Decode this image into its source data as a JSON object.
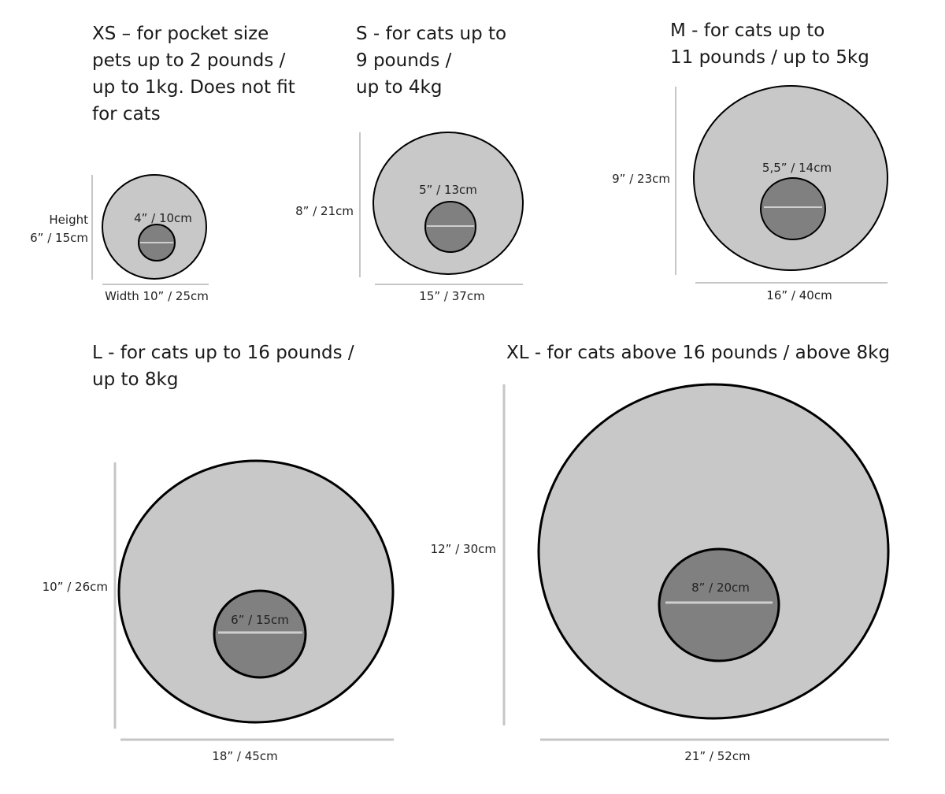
{
  "colors": {
    "outer_fill": "#c8c8c8",
    "inner_fill": "#808080",
    "outline": "#000000",
    "dimension_line": "#c6c6c6",
    "inner_line": "#cfcfcf"
  },
  "sizes": [
    {
      "title": "XS – for pocket size\npets up to 2 pounds /\nup to 1kg. Does not fit\nfor cats",
      "height_label_word": "Height",
      "height": "6” / 15cm",
      "width": "Width 10” / 25cm",
      "opening": "4” / 10cm"
    },
    {
      "title": "S - for cats up to\n9 pounds /\nup to 4kg",
      "height": "8” / 21cm",
      "width": "15” / 37cm",
      "opening": "5” / 13cm"
    },
    {
      "title": "M - for cats up to\n11 pounds / up to 5kg",
      "height": "9” / 23cm",
      "width": "16” / 40cm",
      "opening": "5,5” / 14cm"
    },
    {
      "title": "L - for cats up to 16 pounds /\nup to 8kg",
      "height": "10” / 26cm",
      "width": "18” / 45cm",
      "opening": "6” / 15cm"
    },
    {
      "title": "XL - for cats above 16 pounds / above 8kg",
      "height": "12” / 30cm",
      "width": "21” / 52cm",
      "opening": "8” / 20cm"
    }
  ]
}
